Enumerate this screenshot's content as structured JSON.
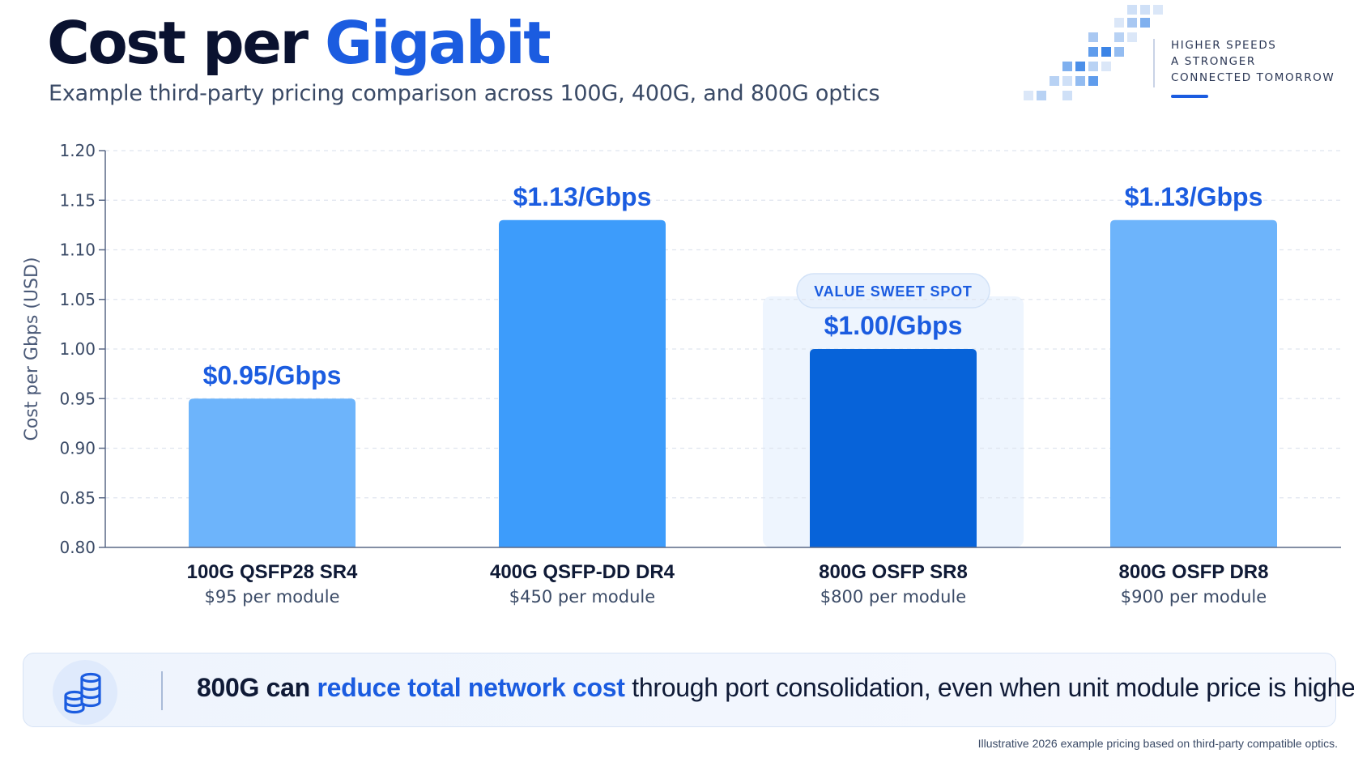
{
  "header": {
    "title_part1": "Cost per",
    "title_part2": "Gigabit",
    "subtitle": "Example third-party pricing comparison across 100G, 400G, and 800G optics",
    "tagline": [
      "HIGHER SPEEDS",
      "A STRONGER",
      "CONNECTED TOMORROW"
    ]
  },
  "colors": {
    "accent": "#1b5ce0",
    "bar_light": "#6db4fb",
    "bar_mid": "#3d9cfb",
    "bar_dark": "#0763d9",
    "highlight_panel": "#eef5fe"
  },
  "chart_data": {
    "type": "bar",
    "ylabel": "Cost per Gbps (USD)",
    "ylim": [
      0.8,
      1.2
    ],
    "yticks": [
      "0.80",
      "0.85",
      "0.90",
      "0.95",
      "1.00",
      "1.05",
      "1.10",
      "1.15",
      "1.20"
    ],
    "grid": true,
    "categories": [
      "100G QSFP28 SR4",
      "400G QSFP-DD DR4",
      "800G OSFP SR8",
      "800G OSFP DR8"
    ],
    "module_prices": [
      "$95 per module",
      "$450 per module",
      "$800 per module",
      "$900 per module"
    ],
    "values": [
      0.95,
      1.13,
      1.0,
      1.13
    ],
    "data_labels": [
      "$0.95/Gbps",
      "$1.13/Gbps",
      "$1.00/Gbps",
      "$1.13/Gbps"
    ],
    "bar_colors": [
      "#6db4fb",
      "#3d9cfb",
      "#0763d9",
      "#6db4fb"
    ],
    "highlight": {
      "index": 2,
      "label": "VALUE SWEET SPOT"
    }
  },
  "banner": {
    "icon": "coin-stack-icon",
    "text_lead": "800G can",
    "text_emphasis": "reduce total network cost",
    "text_rest": "through port consolidation, even when unit module price is higher."
  },
  "footnote": "Illustrative 2026 example pricing based on third-party compatible optics."
}
